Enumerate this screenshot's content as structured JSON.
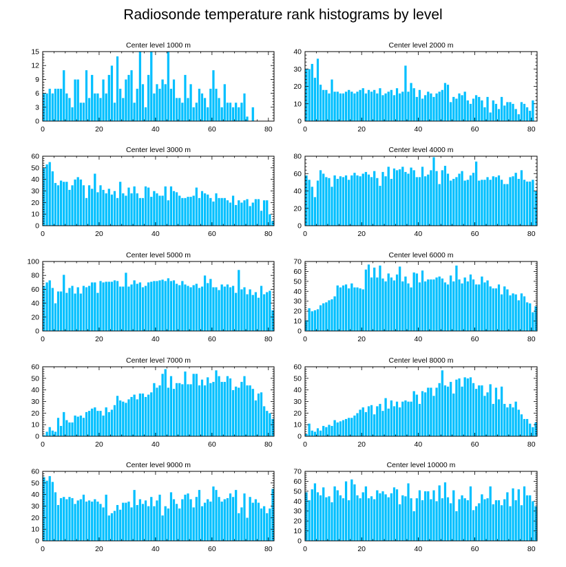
{
  "title": "Radiosonde temperature rank histograms by level",
  "colors": {
    "bar": "#00BFFF",
    "bar_edge": "#ffffff",
    "axis": "#000000"
  },
  "chart_data": [
    {
      "type": "bar",
      "title": "Center level 1000 m",
      "xlabel": "",
      "ylabel": "",
      "xlim": [
        0,
        82
      ],
      "ylim": [
        0,
        15
      ],
      "xticks": [
        0,
        20,
        40,
        60,
        80
      ],
      "yticks": [
        0,
        3,
        6,
        9,
        12,
        15
      ],
      "values": [
        6,
        6,
        7,
        6,
        7,
        7,
        7,
        11,
        6,
        5,
        3,
        9,
        9,
        4,
        4,
        11,
        5,
        10,
        6,
        6,
        5,
        9,
        6,
        10,
        12,
        4,
        14,
        7,
        5,
        9,
        10,
        11,
        4,
        7,
        15,
        8,
        3,
        10,
        15,
        6,
        8,
        7,
        9,
        8,
        15,
        7,
        9,
        5,
        5,
        4,
        10,
        5,
        8,
        3,
        4,
        7,
        6,
        5,
        3,
        7,
        11,
        7,
        5,
        3,
        8,
        4,
        4,
        3,
        4,
        3,
        4,
        6,
        1,
        0,
        3
      ]
    },
    {
      "type": "bar",
      "title": "Center level 2000 m",
      "xlabel": "",
      "ylabel": "",
      "xlim": [
        0,
        82
      ],
      "ylim": [
        0,
        40
      ],
      "xticks": [
        0,
        20,
        40,
        60,
        80
      ],
      "yticks": [
        0,
        10,
        20,
        30,
        40
      ],
      "values": [
        30,
        30,
        33,
        25,
        36,
        21,
        18,
        18,
        16,
        24,
        17,
        17,
        16,
        16,
        17,
        18,
        17,
        16,
        17,
        18,
        19,
        16,
        18,
        17,
        18,
        16,
        19,
        15,
        16,
        17,
        18,
        15,
        19,
        16,
        17,
        32,
        17,
        22,
        19,
        14,
        18,
        13,
        15,
        17,
        16,
        14,
        16,
        17,
        18,
        22,
        21,
        11,
        14,
        13,
        16,
        15,
        17,
        12,
        10,
        13,
        15,
        14,
        12,
        8,
        14,
        5,
        12,
        10,
        7,
        14,
        9,
        11,
        11,
        10,
        7,
        4,
        11,
        10,
        8,
        6,
        12
      ]
    },
    {
      "type": "bar",
      "title": "Center level 3000 m",
      "xlabel": "",
      "ylabel": "",
      "xlim": [
        0,
        82
      ],
      "ylim": [
        0,
        60
      ],
      "xticks": [
        0,
        20,
        40,
        60,
        80
      ],
      "yticks": [
        0,
        10,
        20,
        30,
        40,
        50,
        60
      ],
      "values": [
        50,
        53,
        55,
        47,
        37,
        35,
        39,
        38,
        38,
        31,
        35,
        40,
        42,
        40,
        35,
        24,
        35,
        32,
        45,
        29,
        35,
        31,
        28,
        32,
        27,
        30,
        24,
        38,
        28,
        26,
        33,
        28,
        34,
        28,
        24,
        24,
        34,
        33,
        25,
        30,
        28,
        26,
        26,
        34,
        22,
        34,
        30,
        29,
        26,
        24,
        24,
        25,
        25,
        26,
        33,
        24,
        30,
        28,
        27,
        24,
        21,
        28,
        24,
        24,
        24,
        22,
        20,
        26,
        18,
        22,
        20,
        22,
        23,
        17,
        20,
        23,
        23,
        13,
        22,
        22,
        10,
        4
      ]
    },
    {
      "type": "bar",
      "title": "Center level 4000 m",
      "xlabel": "",
      "ylabel": "",
      "xlim": [
        0,
        82
      ],
      "ylim": [
        0,
        80
      ],
      "xticks": [
        0,
        20,
        40,
        60,
        80
      ],
      "yticks": [
        0,
        20,
        40,
        60,
        80
      ],
      "values": [
        58,
        53,
        45,
        33,
        52,
        64,
        60,
        56,
        55,
        45,
        58,
        54,
        57,
        56,
        58,
        53,
        58,
        61,
        58,
        57,
        60,
        62,
        59,
        56,
        63,
        55,
        46,
        62,
        57,
        68,
        54,
        66,
        64,
        65,
        68,
        62,
        60,
        67,
        64,
        56,
        56,
        68,
        57,
        59,
        64,
        79,
        63,
        48,
        64,
        69,
        60,
        52,
        54,
        56,
        60,
        63,
        52,
        53,
        58,
        61,
        74,
        52,
        53,
        53,
        56,
        53,
        57,
        56,
        58,
        53,
        48,
        48,
        56,
        57,
        61,
        54,
        64,
        53,
        51,
        51,
        53,
        40
      ]
    },
    {
      "type": "bar",
      "title": "Center level 5000 m",
      "xlabel": "",
      "ylabel": "",
      "xlim": [
        0,
        82
      ],
      "ylim": [
        0,
        100
      ],
      "xticks": [
        0,
        20,
        40,
        60,
        80
      ],
      "yticks": [
        0,
        20,
        40,
        60,
        80,
        100
      ],
      "values": [
        65,
        70,
        73,
        62,
        40,
        57,
        57,
        81,
        55,
        62,
        65,
        54,
        63,
        54,
        65,
        63,
        65,
        70,
        70,
        55,
        72,
        70,
        71,
        71,
        71,
        73,
        72,
        64,
        64,
        84,
        64,
        67,
        73,
        68,
        70,
        63,
        65,
        70,
        71,
        72,
        72,
        73,
        74,
        72,
        76,
        72,
        73,
        68,
        66,
        72,
        67,
        65,
        63,
        66,
        68,
        62,
        64,
        80,
        69,
        75,
        63,
        63,
        59,
        67,
        64,
        67,
        63,
        65,
        55,
        88,
        60,
        63,
        53,
        60,
        52,
        56,
        48,
        65,
        53,
        56,
        58,
        30,
        41
      ]
    },
    {
      "type": "bar",
      "title": "Center level 6000 m",
      "xlabel": "",
      "ylabel": "",
      "xlim": [
        0,
        82
      ],
      "ylim": [
        0,
        70
      ],
      "xticks": [
        0,
        20,
        40,
        60,
        80
      ],
      "yticks": [
        0,
        10,
        20,
        30,
        40,
        50,
        60,
        70
      ],
      "values": [
        11,
        23,
        20,
        21,
        22,
        26,
        28,
        29,
        31,
        32,
        35,
        46,
        44,
        46,
        47,
        43,
        48,
        44,
        44,
        43,
        42,
        62,
        67,
        54,
        64,
        54,
        66,
        53,
        50,
        58,
        54,
        51,
        57,
        65,
        50,
        55,
        48,
        44,
        59,
        58,
        49,
        61,
        50,
        52,
        52,
        52,
        54,
        55,
        53,
        49,
        47,
        56,
        50,
        66,
        52,
        48,
        54,
        50,
        57,
        52,
        47,
        47,
        55,
        49,
        51,
        45,
        43,
        43,
        47,
        37,
        45,
        42,
        36,
        38,
        37,
        31,
        38,
        35,
        29,
        28,
        19,
        25,
        30
      ]
    },
    {
      "type": "bar",
      "title": "Center level 7000 m",
      "xlabel": "",
      "ylabel": "",
      "xlim": [
        0,
        82
      ],
      "ylim": [
        0,
        60
      ],
      "xticks": [
        0,
        20,
        40,
        60,
        80
      ],
      "yticks": [
        0,
        10,
        20,
        30,
        40,
        50,
        60
      ],
      "values": [
        1,
        4,
        8,
        5,
        4,
        16,
        9,
        21,
        14,
        12,
        12,
        18,
        17,
        18,
        16,
        21,
        22,
        24,
        25,
        22,
        22,
        18,
        25,
        21,
        23,
        27,
        35,
        31,
        30,
        29,
        32,
        34,
        36,
        32,
        37,
        37,
        34,
        36,
        38,
        46,
        42,
        44,
        54,
        58,
        42,
        52,
        41,
        46,
        46,
        45,
        56,
        45,
        45,
        54,
        54,
        44,
        49,
        44,
        51,
        46,
        47,
        57,
        52,
        47,
        47,
        52,
        50,
        40,
        43,
        42,
        47,
        52,
        44,
        44,
        41,
        31,
        37,
        38,
        26,
        22,
        20,
        15
      ]
    },
    {
      "type": "bar",
      "title": "Center level 8000 m",
      "xlabel": "",
      "ylabel": "",
      "xlim": [
        0,
        82
      ],
      "ylim": [
        0,
        60
      ],
      "xticks": [
        0,
        20,
        40,
        60,
        80
      ],
      "yticks": [
        0,
        10,
        20,
        30,
        40,
        50,
        60
      ],
      "values": [
        2,
        11,
        5,
        4,
        7,
        5,
        9,
        8,
        10,
        9,
        14,
        12,
        13,
        14,
        15,
        16,
        16,
        18,
        20,
        23,
        25,
        21,
        26,
        27,
        19,
        26,
        28,
        22,
        33,
        24,
        31,
        26,
        30,
        25,
        30,
        31,
        30,
        30,
        39,
        36,
        28,
        39,
        38,
        42,
        42,
        35,
        42,
        46,
        57,
        44,
        43,
        47,
        37,
        49,
        50,
        43,
        51,
        50,
        51,
        46,
        41,
        44,
        44,
        35,
        38,
        45,
        28,
        42,
        32,
        43,
        28,
        25,
        28,
        25,
        30,
        23,
        19,
        15,
        15,
        11,
        8,
        12
      ]
    },
    {
      "type": "bar",
      "title": "Center level 9000 m",
      "xlabel": "",
      "ylabel": "",
      "xlim": [
        0,
        82
      ],
      "ylim": [
        0,
        60
      ],
      "xticks": [
        0,
        20,
        40,
        60,
        80
      ],
      "yticks": [
        0,
        10,
        20,
        30,
        40,
        50,
        60
      ],
      "values": [
        55,
        52,
        56,
        51,
        42,
        31,
        37,
        38,
        36,
        38,
        37,
        32,
        35,
        36,
        40,
        34,
        35,
        34,
        36,
        34,
        32,
        29,
        40,
        22,
        24,
        26,
        31,
        27,
        33,
        33,
        34,
        29,
        44,
        31,
        36,
        32,
        35,
        30,
        38,
        30,
        35,
        40,
        22,
        30,
        28,
        42,
        36,
        32,
        28,
        36,
        40,
        41,
        36,
        29,
        38,
        44,
        30,
        33,
        36,
        34,
        47,
        44,
        38,
        34,
        36,
        37,
        41,
        38,
        44,
        24,
        29,
        41,
        20,
        38,
        33,
        36,
        33,
        28,
        30,
        24,
        28,
        45,
        44
      ]
    },
    {
      "type": "bar",
      "title": "Center level 10000 m",
      "xlabel": "",
      "ylabel": "",
      "xlim": [
        0,
        82
      ],
      "ylim": [
        0,
        70
      ],
      "xticks": [
        0,
        20,
        40,
        60,
        80
      ],
      "yticks": [
        0,
        10,
        20,
        30,
        40,
        50,
        60,
        70
      ],
      "values": [
        49,
        41,
        52,
        58,
        49,
        46,
        54,
        44,
        45,
        39,
        55,
        51,
        46,
        43,
        60,
        41,
        62,
        57,
        46,
        43,
        49,
        55,
        43,
        45,
        42,
        51,
        48,
        50,
        47,
        44,
        48,
        54,
        52,
        37,
        46,
        45,
        58,
        43,
        30,
        43,
        51,
        41,
        50,
        50,
        42,
        51,
        40,
        56,
        43,
        59,
        44,
        38,
        51,
        30,
        42,
        46,
        43,
        41,
        55,
        31,
        35,
        38,
        47,
        42,
        43,
        55,
        37,
        41,
        41,
        36,
        42,
        49,
        35,
        53,
        41,
        52,
        36,
        55,
        46,
        46,
        40,
        35,
        32
      ]
    }
  ]
}
